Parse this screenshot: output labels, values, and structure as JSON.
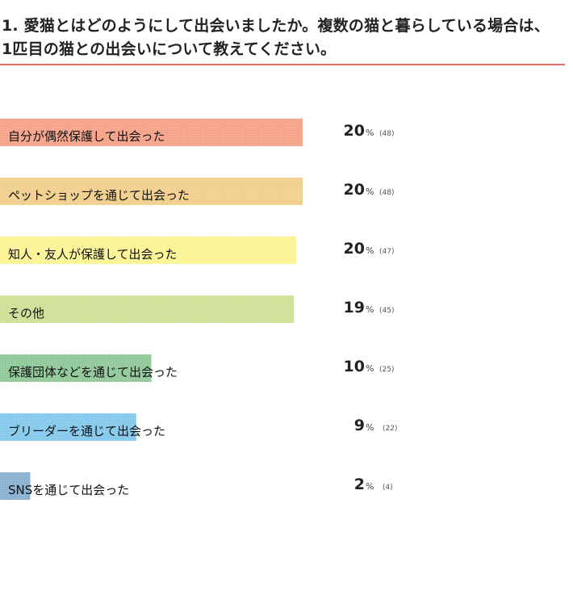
{
  "question": {
    "text": "1. 愛猫とはどのようにして出会いましたか。複数の猫と暮らしている場合は、1匹目の猫との出会いについて教えてください。"
  },
  "chart_data": {
    "type": "bar",
    "orientation": "horizontal",
    "percent_suffix": "%",
    "categories": [
      "自分が偶然保護して出会った",
      "ペットショップを通じて出会った",
      "知人・友人が保護して出会った",
      "その他",
      "保護団体などを通じて出会った",
      "ブリーダーを通じて出会った",
      "SNSを通じて出会った"
    ],
    "values": [
      20,
      20,
      20,
      19,
      10,
      9,
      2
    ],
    "counts": [
      48,
      48,
      47,
      45,
      25,
      22,
      4
    ],
    "colors": [
      "#f5a48a",
      "#f2cf8f",
      "#fbf596",
      "#cfe097",
      "#92c99a",
      "#86c9ec",
      "#8bb2d0"
    ]
  }
}
